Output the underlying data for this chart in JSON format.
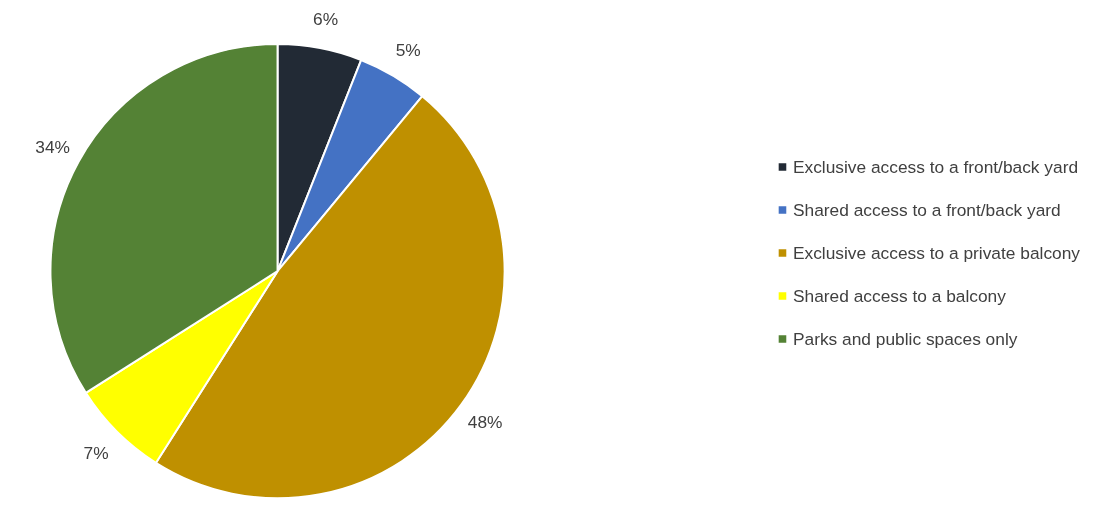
{
  "chart_data": {
    "type": "pie",
    "categories": [
      "Exclusive access to a front/back yard",
      "Shared access to a front/back yard",
      "Exclusive access to a private balcony",
      "Shared access to a balcony",
      "Parks and public spaces only"
    ],
    "values": [
      6,
      5,
      48,
      7,
      34
    ],
    "value_labels": [
      "6%",
      "5%",
      "48%",
      "7%",
      "34%"
    ],
    "colors": [
      "#222a35",
      "#4472c4",
      "#bf9000",
      "#ffff00",
      "#548235"
    ],
    "legend": "right"
  }
}
